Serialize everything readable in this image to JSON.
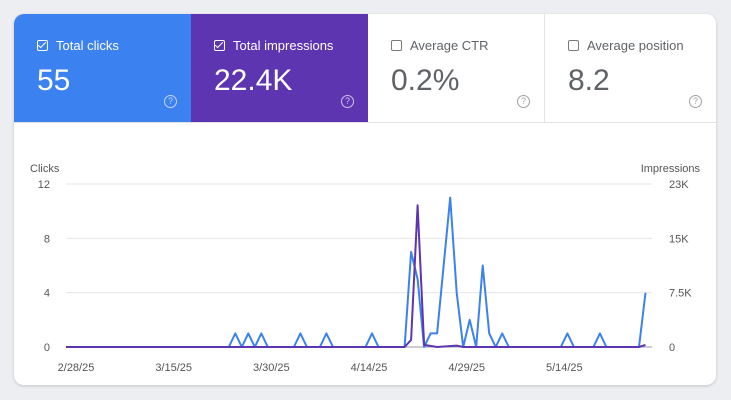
{
  "metrics": [
    {
      "label": "Total clicks",
      "value": "55",
      "checked": true
    },
    {
      "label": "Total impressions",
      "value": "22.4K",
      "checked": true
    },
    {
      "label": "Average CTR",
      "value": "0.2%",
      "checked": false
    },
    {
      "label": "Average position",
      "value": "8.2",
      "checked": false
    }
  ],
  "help_glyph": "?",
  "colors": {
    "clicks": "#3b82f0",
    "impressions": "#5e35b1"
  },
  "chart_data": {
    "type": "line",
    "left_axis_label": "Clicks",
    "right_axis_label": "Impressions",
    "left_ticks": [
      "12",
      "8",
      "4",
      "0"
    ],
    "right_ticks": [
      "23K",
      "15K",
      "7.5K",
      "0"
    ],
    "x_ticks": [
      "2/28/25",
      "3/15/25",
      "3/30/25",
      "4/14/25",
      "4/29/25",
      "5/14/25"
    ],
    "x_tick_days": [
      0,
      15,
      30,
      45,
      60,
      75
    ],
    "ylim_left": [
      0,
      12
    ],
    "ylim_right": [
      0,
      23000
    ],
    "series": [
      {
        "name": "Clicks",
        "axis": "left",
        "points": [
          [
            0,
            0
          ],
          [
            25,
            0
          ],
          [
            26,
            1
          ],
          [
            27,
            0
          ],
          [
            28,
            1
          ],
          [
            29,
            0
          ],
          [
            30,
            1
          ],
          [
            31,
            0
          ],
          [
            35,
            0
          ],
          [
            36,
            1
          ],
          [
            37,
            0
          ],
          [
            39,
            0
          ],
          [
            40,
            1
          ],
          [
            41,
            0
          ],
          [
            46,
            0
          ],
          [
            47,
            1
          ],
          [
            48,
            0
          ],
          [
            52,
            0
          ],
          [
            53,
            7
          ],
          [
            54,
            5
          ],
          [
            55,
            0
          ],
          [
            56,
            1
          ],
          [
            57,
            1
          ],
          [
            59,
            11
          ],
          [
            60,
            4
          ],
          [
            61,
            0
          ],
          [
            62,
            2
          ],
          [
            63,
            0
          ],
          [
            64,
            6
          ],
          [
            65,
            1
          ],
          [
            66,
            0
          ],
          [
            67,
            1
          ],
          [
            68,
            0
          ],
          [
            76,
            0
          ],
          [
            77,
            1
          ],
          [
            78,
            0
          ],
          [
            81,
            0
          ],
          [
            82,
            1
          ],
          [
            83,
            0
          ],
          [
            88,
            0
          ],
          [
            89,
            4
          ]
        ]
      },
      {
        "name": "Impressions",
        "axis": "right",
        "points": [
          [
            0,
            0
          ],
          [
            52,
            0
          ],
          [
            53,
            1000
          ],
          [
            54,
            20000
          ],
          [
            55,
            300
          ],
          [
            57,
            0
          ],
          [
            60,
            200
          ],
          [
            61,
            0
          ],
          [
            88,
            0
          ],
          [
            89,
            300
          ]
        ]
      }
    ]
  }
}
